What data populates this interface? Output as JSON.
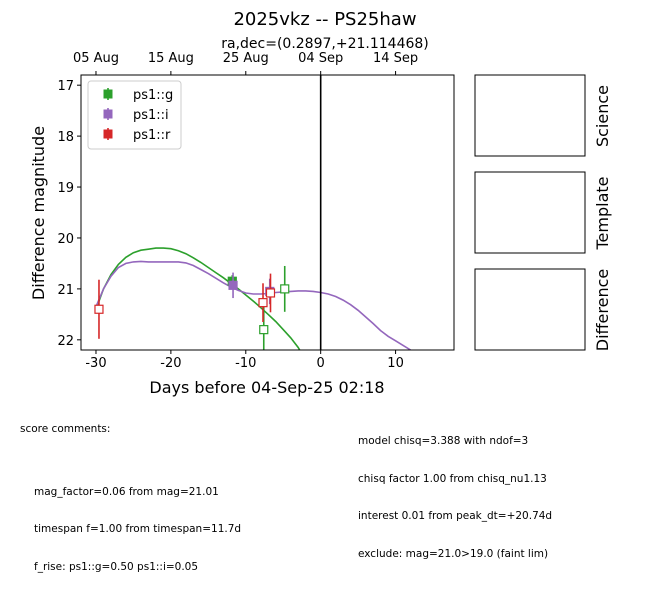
{
  "chart_data": {
    "type": "scatter",
    "title": "2025vkz -- PS25haw",
    "subtitle": "ra,dec=(0.2897,+21.114468)",
    "xlabel": "Days before 04-Sep-25 02:18",
    "ylabel": "Difference magnitude",
    "xlim": [
      -32,
      17.8
    ],
    "ylim": [
      22.2,
      16.8
    ],
    "x_ticks": [
      -30,
      -20,
      -10,
      0,
      10
    ],
    "y_ticks": [
      17,
      18,
      19,
      20,
      21,
      22
    ],
    "top_axis_ticks": [
      {
        "x": -30,
        "label": "05 Aug"
      },
      {
        "x": -20,
        "label": "15 Aug"
      },
      {
        "x": -10,
        "label": "25 Aug"
      },
      {
        "x": 0,
        "label": "04 Sep"
      },
      {
        "x": 10,
        "label": "14 Sep"
      }
    ],
    "vline_x": 0,
    "legend_placement": "top-left",
    "series": [
      {
        "name": "ps1::g",
        "color": "#2ca02c",
        "points": [
          {
            "x": -11.8,
            "y": 20.85,
            "err": 0.12,
            "filled": true
          },
          {
            "x": -7.6,
            "y": 21.8,
            "err": 0.5,
            "filled": false
          },
          {
            "x": -4.8,
            "y": 21.0,
            "err": 0.45,
            "filled": false
          }
        ],
        "model": [
          [
            -30,
            21.4
          ],
          [
            -29,
            21.0
          ],
          [
            -28,
            20.72
          ],
          [
            -27,
            20.52
          ],
          [
            -26,
            20.38
          ],
          [
            -25,
            20.29
          ],
          [
            -24,
            20.24
          ],
          [
            -23,
            20.22
          ],
          [
            -22,
            20.2
          ],
          [
            -21,
            20.2
          ],
          [
            -20,
            20.21
          ],
          [
            -19,
            20.25
          ],
          [
            -18,
            20.31
          ],
          [
            -17,
            20.39
          ],
          [
            -16,
            20.48
          ],
          [
            -15,
            20.58
          ],
          [
            -14,
            20.68
          ],
          [
            -13,
            20.78
          ],
          [
            -12,
            20.89
          ],
          [
            -11,
            21.0
          ],
          [
            -10,
            21.12
          ],
          [
            -9,
            21.24
          ],
          [
            -8,
            21.37
          ],
          [
            -7,
            21.5
          ],
          [
            -6,
            21.64
          ],
          [
            -5,
            21.8
          ],
          [
            -4,
            21.96
          ],
          [
            -3,
            22.15
          ],
          [
            -2.8,
            22.2
          ]
        ]
      },
      {
        "name": "ps1::i",
        "color": "#9467bd",
        "points": [
          {
            "x": -11.7,
            "y": 20.93,
            "err": 0.25,
            "filled": true
          },
          {
            "x": -6.8,
            "y": 21.05,
            "err": 0.25,
            "filled": true
          }
        ],
        "model": [
          [
            -30,
            21.35
          ],
          [
            -29,
            21.0
          ],
          [
            -28,
            20.75
          ],
          [
            -27,
            20.58
          ],
          [
            -26,
            20.5
          ],
          [
            -25,
            20.47
          ],
          [
            -24,
            20.46
          ],
          [
            -23,
            20.47
          ],
          [
            -22,
            20.47
          ],
          [
            -21,
            20.47
          ],
          [
            -20,
            20.47
          ],
          [
            -19,
            20.47
          ],
          [
            -18,
            20.49
          ],
          [
            -17,
            20.54
          ],
          [
            -16,
            20.62
          ],
          [
            -15,
            20.7
          ],
          [
            -14,
            20.79
          ],
          [
            -13,
            20.88
          ],
          [
            -12,
            20.96
          ],
          [
            -11,
            21.03
          ],
          [
            -10,
            21.08
          ],
          [
            -9,
            21.1
          ],
          [
            -8,
            21.1
          ],
          [
            -7,
            21.09
          ],
          [
            -6,
            21.07
          ],
          [
            -5,
            21.06
          ],
          [
            -4,
            21.05
          ],
          [
            -3,
            21.04
          ],
          [
            -2,
            21.04
          ],
          [
            -1,
            21.05
          ],
          [
            0,
            21.07
          ],
          [
            1,
            21.1
          ],
          [
            2,
            21.15
          ],
          [
            3,
            21.22
          ],
          [
            4,
            21.31
          ],
          [
            5,
            21.42
          ],
          [
            6,
            21.55
          ],
          [
            7,
            21.68
          ],
          [
            8,
            21.82
          ],
          [
            9,
            21.93
          ],
          [
            10,
            22.02
          ],
          [
            11,
            22.11
          ],
          [
            12,
            22.2
          ]
        ]
      },
      {
        "name": "ps1::r",
        "color": "#d62728",
        "points": [
          {
            "x": -29.6,
            "y": 21.4,
            "err": 0.58,
            "filled": false
          },
          {
            "x": -7.7,
            "y": 21.27,
            "err": 0.38,
            "filled": false
          },
          {
            "x": -6.7,
            "y": 21.08,
            "err": 0.38,
            "filled": false
          }
        ],
        "model": []
      }
    ]
  },
  "panels": {
    "science": "Science",
    "template": "Template",
    "difference": "Difference"
  },
  "comments": {
    "header": "score comments:",
    "left": [
      "mag_factor=0.06 from mag=21.01",
      "timespan f=1.00 from timespan=11.7d",
      "f_rise: ps1::g=0.50 ps1::i=0.05"
    ],
    "right": [
      "model chisq=3.388 with ndof=3",
      "chisq factor 1.00 from chisq_nu1.13",
      "interest 0.01 from peak_dt=+20.74d",
      "exclude: mag=21.0>19.0 (faint lim)"
    ]
  }
}
